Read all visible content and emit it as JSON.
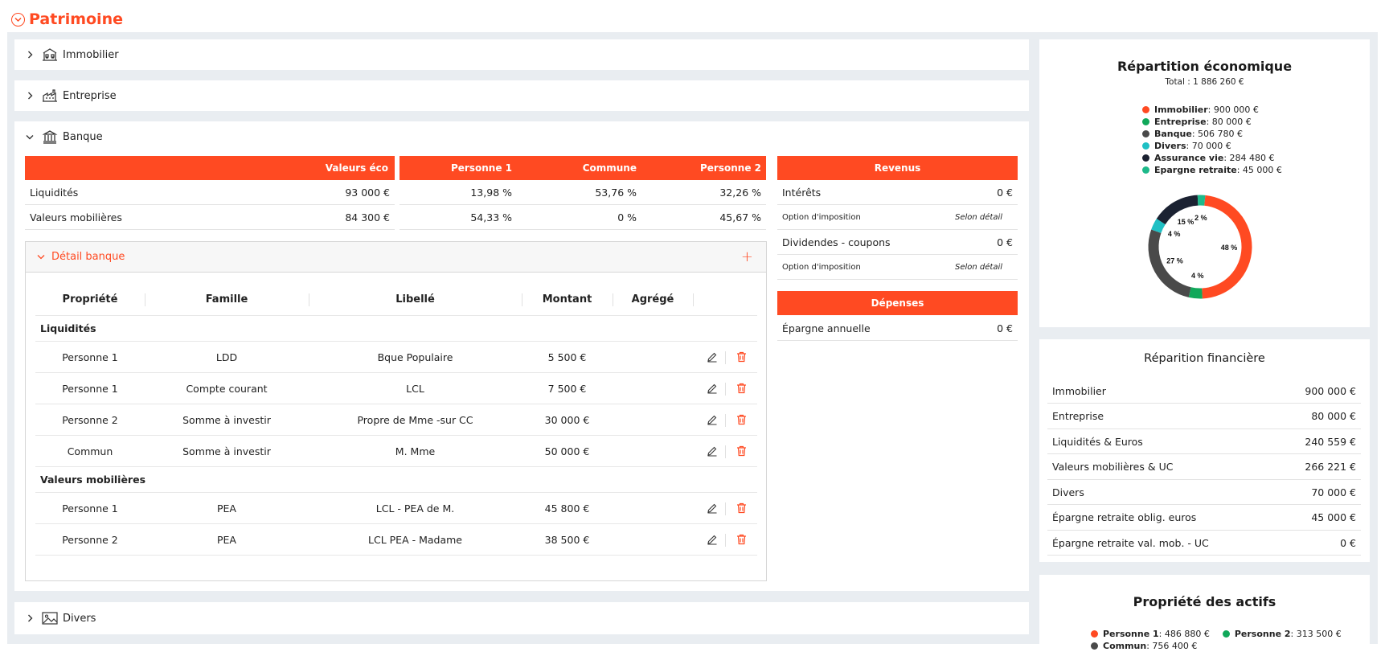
{
  "page": {
    "title": "Patrimoine"
  },
  "sections": {
    "immobilier": "Immobilier",
    "entreprise": "Entreprise",
    "banque": "Banque",
    "divers": "Divers"
  },
  "banque": {
    "headers": {
      "valeurs_eco": "Valeurs éco",
      "personne1": "Personne 1",
      "commune": "Commune",
      "personne2": "Personne 2",
      "revenus": "Revenus",
      "depenses": "Dépenses"
    },
    "rows": [
      {
        "label": "Liquidités",
        "value": "93 000 €",
        "p1": "13,98 %",
        "commune": "53,76 %",
        "p2": "32,26 %"
      },
      {
        "label": "Valeurs mobilières",
        "value": "84 300 €",
        "p1": "54,33 %",
        "commune": "0 %",
        "p2": "45,67 %"
      }
    ],
    "revenus": [
      {
        "label": "Intérêts",
        "value": "0 €",
        "option_label": "Option d'imposition",
        "option_value": "Selon détail"
      },
      {
        "label": "Dividendes - coupons",
        "value": "0 €",
        "option_label": "Option d'imposition",
        "option_value": "Selon détail"
      }
    ],
    "depenses": [
      {
        "label": "Épargne annuelle",
        "value": "0 €"
      }
    ],
    "detail": {
      "title": "Détail banque",
      "add": "+",
      "columns": {
        "propriete": "Propriété",
        "famille": "Famille",
        "libelle": "Libellé",
        "montant": "Montant",
        "agrege": "Agrégé"
      },
      "groups": [
        {
          "name": "Liquidités",
          "rows": [
            {
              "propriete": "Personne 1",
              "famille": "LDD",
              "libelle": "Bque Populaire",
              "montant": "5 500 €"
            },
            {
              "propriete": "Personne 1",
              "famille": "Compte courant",
              "libelle": "LCL",
              "montant": "7 500 €"
            },
            {
              "propriete": "Personne 2",
              "famille": "Somme à investir",
              "libelle": "Propre de Mme -sur CC",
              "montant": "30 000 €"
            },
            {
              "propriete": "Commun",
              "famille": "Somme à investir",
              "libelle": "M. Mme",
              "montant": "50 000 €"
            }
          ]
        },
        {
          "name": "Valeurs mobilières",
          "rows": [
            {
              "propriete": "Personne 1",
              "famille": "PEA",
              "libelle": "LCL - PEA de M.",
              "montant": "45 800 €"
            },
            {
              "propriete": "Personne 2",
              "famille": "PEA",
              "libelle": "LCL PEA - Madame",
              "montant": "38 500 €"
            }
          ]
        }
      ]
    }
  },
  "repartition_eco": {
    "title": "Répartition économique",
    "total": "Total : 1 886 260 €",
    "legend": [
      {
        "name": "Immobilier",
        "value": " : 900 000 €",
        "color": "#ff4a22"
      },
      {
        "name": "Entreprise",
        "value": " : 80 000 €",
        "color": "#11a85a"
      },
      {
        "name": "Banque",
        "value": " : 506 780 €",
        "color": "#4a4a4a"
      },
      {
        "name": "Divers",
        "value": " : 70 000 €",
        "color": "#1fc0c4"
      },
      {
        "name": "Assurance vie",
        "value": " : 284 480 €",
        "color": "#1b2232"
      },
      {
        "name": "Epargne retraite",
        "value": " : 45 000 €",
        "color": "#1db98a"
      }
    ],
    "slice_labels": [
      "48 %",
      "4 %",
      "27 %",
      "4 %",
      "15 %",
      "2 %"
    ]
  },
  "chart_data": {
    "type": "pie",
    "title": "Répartition économique",
    "categories": [
      "Immobilier",
      "Entreprise",
      "Banque",
      "Divers",
      "Assurance vie",
      "Epargne retraite"
    ],
    "values": [
      900000,
      80000,
      506780,
      70000,
      284480,
      45000
    ],
    "colors": [
      "#ff4a22",
      "#11a85a",
      "#4a4a4a",
      "#1fc0c4",
      "#1b2232",
      "#1db98a"
    ]
  },
  "repartition_fin": {
    "title": "Réparition financière",
    "rows": [
      {
        "label": "Immobilier",
        "value": "900 000 €"
      },
      {
        "label": "Entreprise",
        "value": "80 000 €"
      },
      {
        "label": "Liquidités & Euros",
        "value": "240 559 €"
      },
      {
        "label": "Valeurs mobilières & UC",
        "value": "266 221 €"
      },
      {
        "label": "Divers",
        "value": "70 000 €"
      },
      {
        "label": "Épargne retraite oblig. euros",
        "value": "45 000 €"
      },
      {
        "label": "Épargne retraite val. mob. - UC",
        "value": "0 €"
      }
    ]
  },
  "propriete": {
    "title": "Propriété des actifs",
    "legend": [
      {
        "name": "Personne 1",
        "value": " : 486 880 €",
        "color": "#ff4a22"
      },
      {
        "name": "Personne 2",
        "value": " : 313 500 €",
        "color": "#11a85a"
      },
      {
        "name": "Commun",
        "value": " : 756 400 €",
        "color": "#4a4a4a"
      }
    ]
  }
}
